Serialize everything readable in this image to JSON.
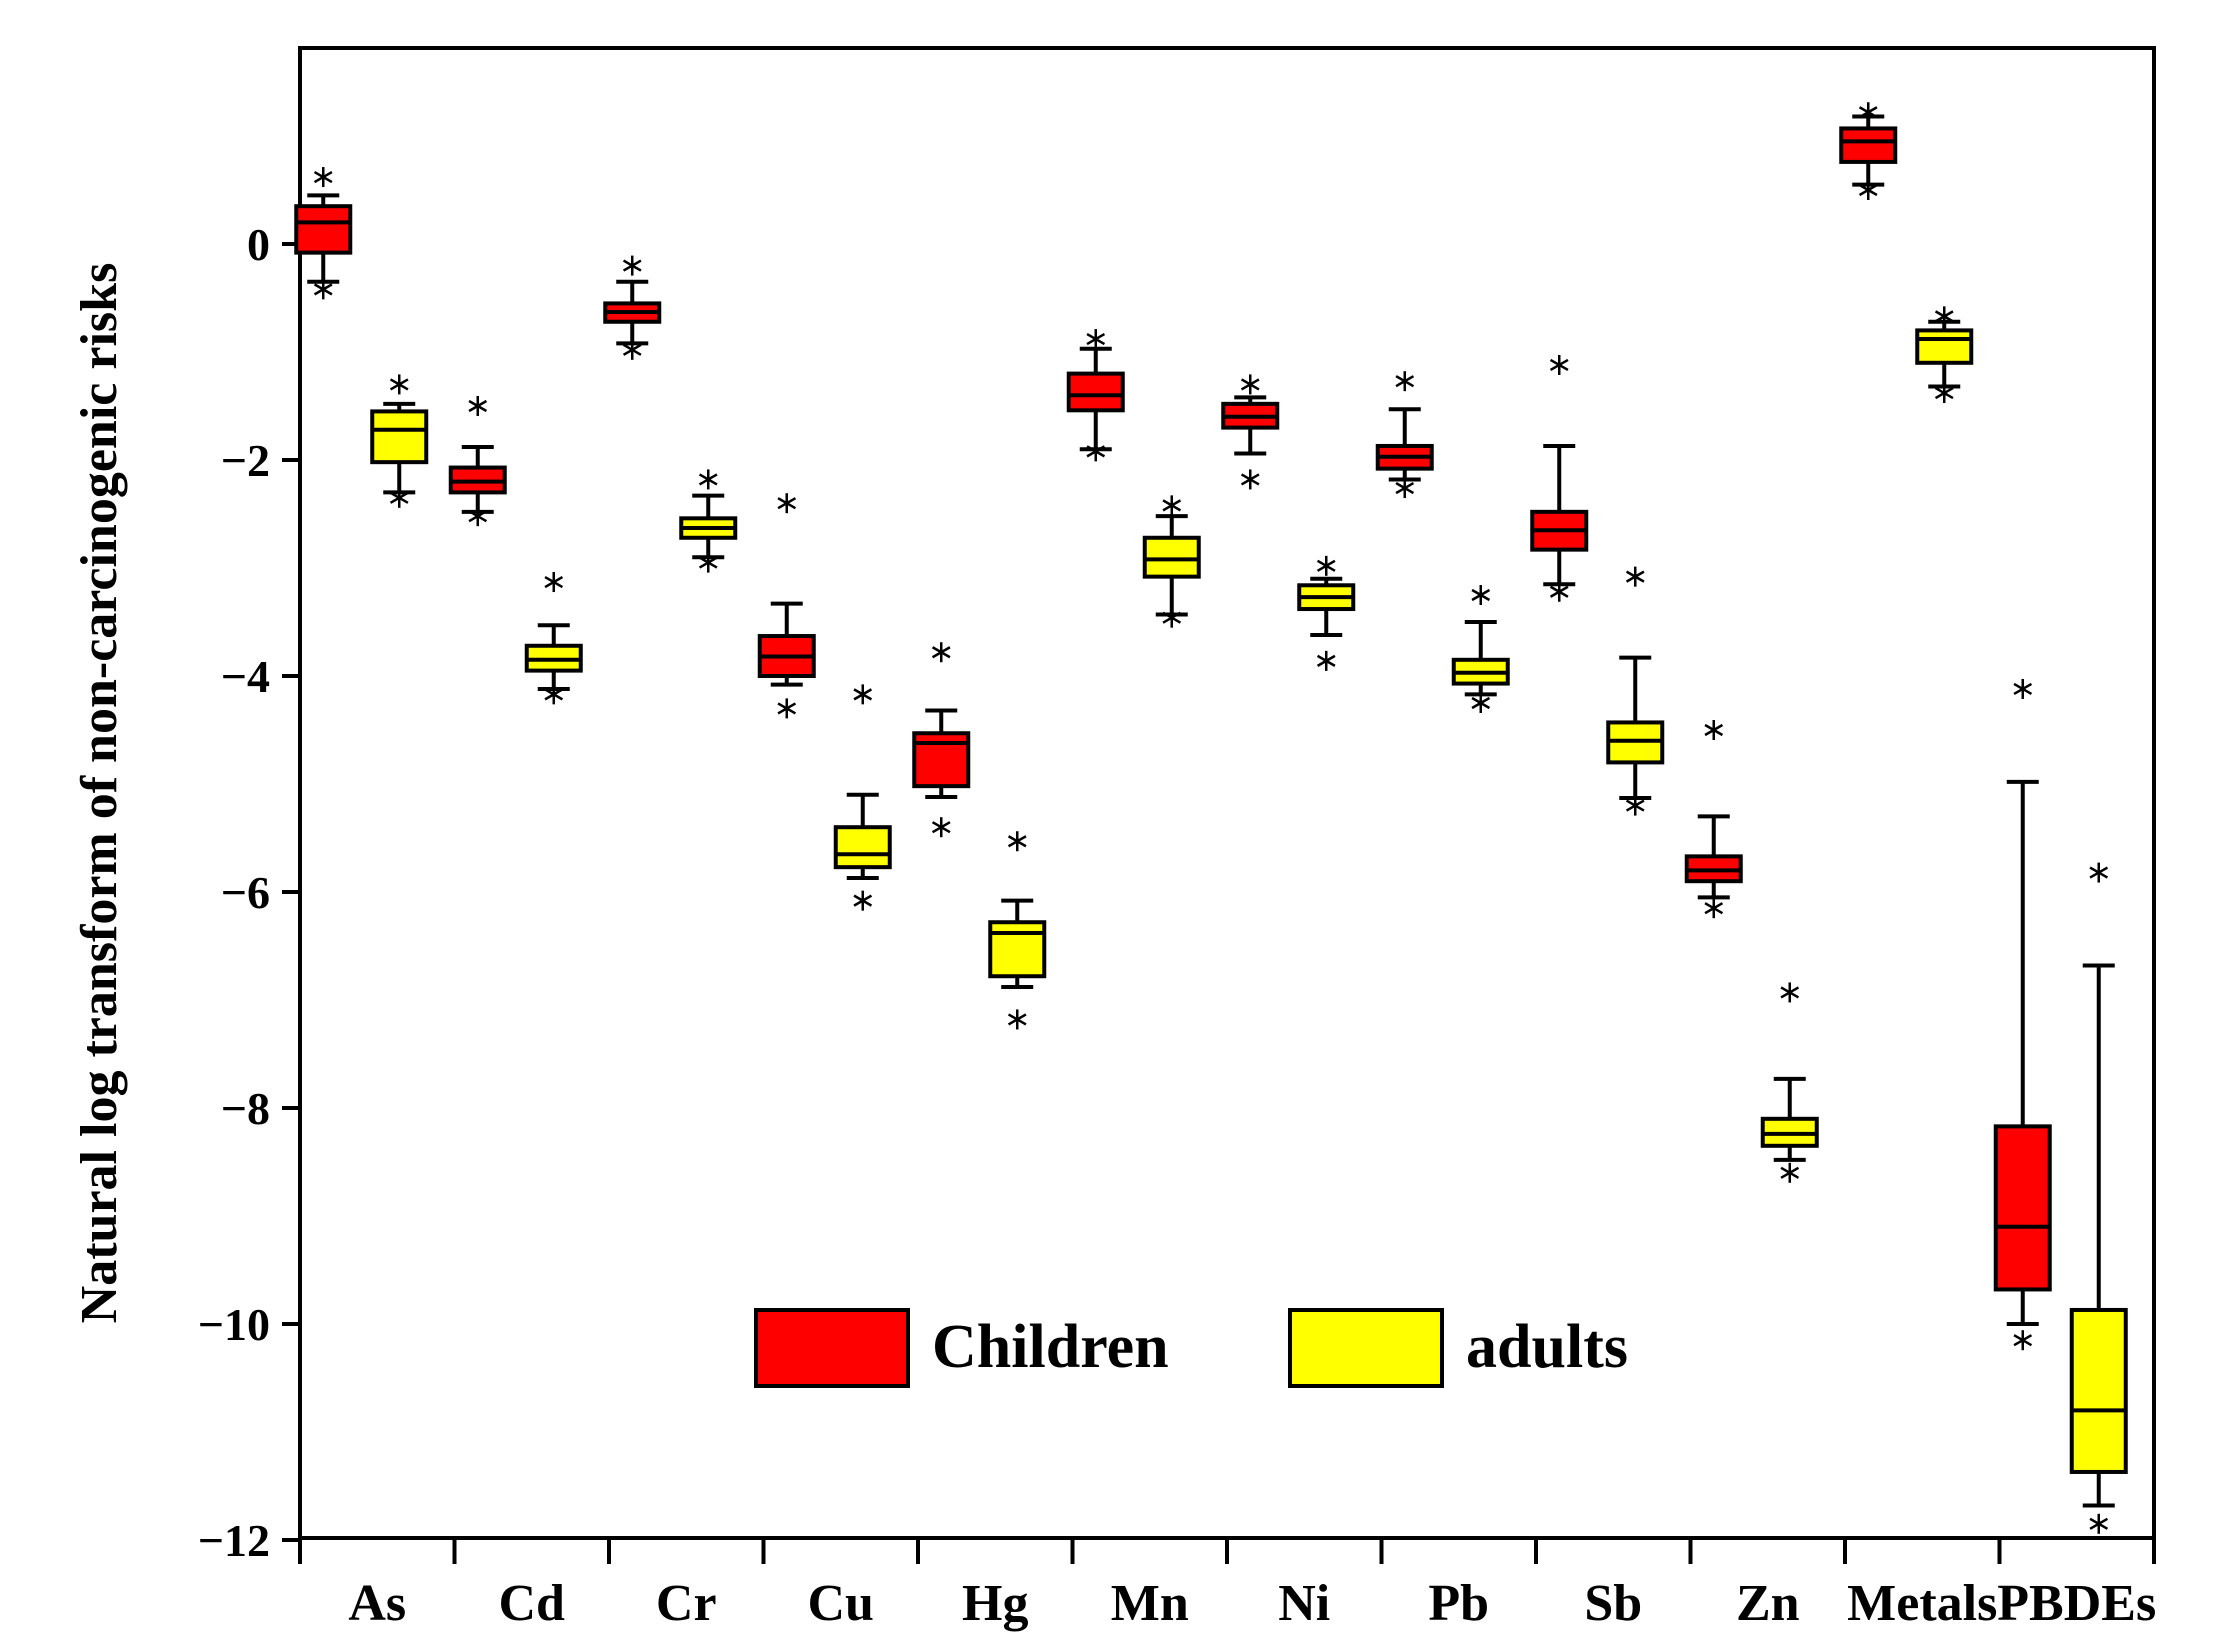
{
  "chart_data": {
    "type": "boxplot",
    "title": "",
    "xlabel": "",
    "ylabel": "Natural log transform of non-carcinogenic risks",
    "ylim": [
      -12,
      1.8
    ],
    "yticks": [
      0,
      -2,
      -4,
      -6,
      -8,
      -10,
      -12
    ],
    "ytick_labels": [
      "0",
      "−2",
      "−4",
      "−6",
      "−8",
      "−10",
      "−12"
    ],
    "categories": [
      "As",
      "Cd",
      "Cr",
      "Cu",
      "Hg",
      "Mn",
      "Ni",
      "Pb",
      "Sb",
      "Zn",
      "Metals",
      "PBDEs"
    ],
    "legend": {
      "position": "lower-center"
    },
    "series": [
      {
        "name": "Children",
        "color": "#ff0000",
        "boxes": [
          {
            "q1": -0.08,
            "median": 0.2,
            "q3": 0.35,
            "wlo": -0.35,
            "whi": 0.45,
            "outliers": [
              0.62,
              -0.42
            ]
          },
          {
            "q1": -2.3,
            "median": -2.2,
            "q3": -2.07,
            "wlo": -2.48,
            "whi": -1.88,
            "outliers": [
              -1.5,
              -2.52
            ]
          },
          {
            "q1": -0.72,
            "median": -0.63,
            "q3": -0.55,
            "wlo": -0.92,
            "whi": -0.35,
            "outliers": [
              -0.2,
              -0.98
            ]
          },
          {
            "q1": -4.0,
            "median": -3.82,
            "q3": -3.63,
            "wlo": -4.08,
            "whi": -3.33,
            "outliers": [
              -2.4,
              -4.3
            ]
          },
          {
            "q1": -5.02,
            "median": -4.62,
            "q3": -4.53,
            "wlo": -5.12,
            "whi": -4.32,
            "outliers": [
              -3.78,
              -5.4
            ]
          },
          {
            "q1": -1.54,
            "median": -1.4,
            "q3": -1.2,
            "wlo": -1.9,
            "whi": -0.97,
            "outliers": [
              -0.88,
              -1.92
            ]
          },
          {
            "q1": -1.7,
            "median": -1.6,
            "q3": -1.48,
            "wlo": -1.94,
            "whi": -1.42,
            "outliers": [
              -1.3,
              -2.18
            ]
          },
          {
            "q1": -2.08,
            "median": -1.97,
            "q3": -1.87,
            "wlo": -2.18,
            "whi": -1.53,
            "outliers": [
              -1.27,
              -2.26
            ]
          },
          {
            "q1": -2.83,
            "median": -2.65,
            "q3": -2.48,
            "wlo": -3.15,
            "whi": -1.87,
            "outliers": [
              -1.12,
              -3.22
            ]
          },
          {
            "q1": -5.9,
            "median": -5.8,
            "q3": -5.67,
            "wlo": -6.05,
            "whi": -5.3,
            "outliers": [
              -4.5,
              -6.15
            ]
          },
          {
            "q1": 0.76,
            "median": 0.95,
            "q3": 1.07,
            "wlo": 0.55,
            "whi": 1.18,
            "outliers": [
              1.22,
              0.5
            ]
          },
          {
            "q1": -9.68,
            "median": -9.1,
            "q3": -8.17,
            "wlo": -10.0,
            "whi": -4.98,
            "outliers": [
              -4.12,
              -10.15
            ]
          }
        ]
      },
      {
        "name": "adults",
        "color": "#ffff00",
        "boxes": [
          {
            "q1": -2.02,
            "median": -1.72,
            "q3": -1.55,
            "wlo": -2.3,
            "whi": -1.48,
            "outliers": [
              -1.3,
              -2.35
            ]
          },
          {
            "q1": -3.95,
            "median": -3.85,
            "q3": -3.72,
            "wlo": -4.12,
            "whi": -3.53,
            "outliers": [
              -3.13,
              -4.17
            ]
          },
          {
            "q1": -2.72,
            "median": -2.63,
            "q3": -2.54,
            "wlo": -2.9,
            "whi": -2.33,
            "outliers": [
              -2.18,
              -2.95
            ]
          },
          {
            "q1": -5.77,
            "median": -5.65,
            "q3": -5.4,
            "wlo": -5.87,
            "whi": -5.1,
            "outliers": [
              -4.17,
              -6.08
            ]
          },
          {
            "q1": -6.78,
            "median": -6.38,
            "q3": -6.28,
            "wlo": -6.88,
            "whi": -6.08,
            "outliers": [
              -5.53,
              -7.18
            ]
          },
          {
            "q1": -3.08,
            "median": -2.92,
            "q3": -2.72,
            "wlo": -3.43,
            "whi": -2.52,
            "outliers": [
              -2.42,
              -3.46
            ]
          },
          {
            "q1": -3.38,
            "median": -3.27,
            "q3": -3.16,
            "wlo": -3.62,
            "whi": -3.1,
            "outliers": [
              -2.98,
              -3.86
            ]
          },
          {
            "q1": -4.07,
            "median": -3.97,
            "q3": -3.85,
            "wlo": -4.17,
            "whi": -3.5,
            "outliers": [
              -3.25,
              -4.25
            ]
          },
          {
            "q1": -4.8,
            "median": -4.6,
            "q3": -4.43,
            "wlo": -5.13,
            "whi": -3.83,
            "outliers": [
              -3.08,
              -5.2
            ]
          },
          {
            "q1": -8.35,
            "median": -8.24,
            "q3": -8.1,
            "wlo": -8.48,
            "whi": -7.73,
            "outliers": [
              -6.93,
              -8.6
            ]
          },
          {
            "q1": -1.1,
            "median": -0.88,
            "q3": -0.8,
            "wlo": -1.32,
            "whi": -0.72,
            "outliers": [
              -0.67,
              -1.38
            ]
          },
          {
            "q1": -11.37,
            "median": -10.8,
            "q3": -9.87,
            "wlo": -11.68,
            "whi": -6.68,
            "outliers": [
              -5.82,
              -11.85
            ]
          }
        ]
      }
    ]
  }
}
